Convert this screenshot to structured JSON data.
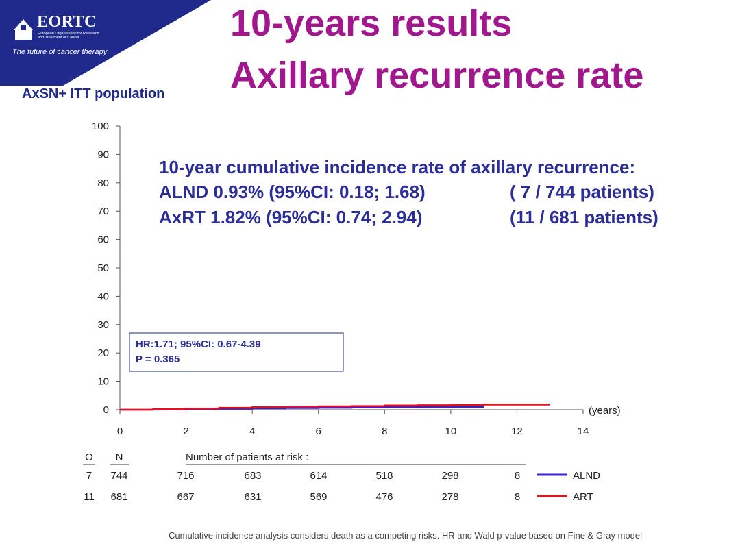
{
  "logo": {
    "name": "EORTC",
    "subtitle_line1": "European Organisation for Research",
    "subtitle_line2": "and Treatment of Cancer",
    "tagline": "The future of cancer therapy"
  },
  "title": {
    "line1": "10-years results",
    "line2": "Axillary recurrence rate"
  },
  "population": "AxSN+ ITT population",
  "summary": {
    "heading": "10-year cumulative incidence rate of axillary recurrence:",
    "alnd_rate": "ALND 0.93% (95%CI: 0.18; 1.68)",
    "alnd_patients": "(  7 / 744 patients)",
    "axrt_rate": "AxRT  1.82% (95%CI: 0.74; 2.94)",
    "axrt_patients": "(11 / 681 patients)"
  },
  "hr_box": {
    "line1": "HR:1.71; 95%CI: 0.67-4.39",
    "line2": "P = 0.365"
  },
  "colors": {
    "title": "#a3178e",
    "text_blue": "#2b2d98",
    "alnd": "#3a1fd6",
    "art": "#e8111b"
  },
  "chart_data": {
    "type": "line",
    "title": "Axillary recurrence rate",
    "xlabel": "(years)",
    "ylabel": "",
    "xlim": [
      0,
      14
    ],
    "ylim": [
      0,
      100
    ],
    "xticks": [
      0,
      2,
      4,
      6,
      8,
      10,
      12,
      14
    ],
    "yticks": [
      0,
      10,
      20,
      30,
      40,
      50,
      60,
      70,
      80,
      90,
      100
    ],
    "series": [
      {
        "name": "ALND",
        "color": "#3a1fd6",
        "x": [
          0,
          1,
          2,
          3,
          4,
          5,
          6,
          7,
          8,
          9,
          10,
          11
        ],
        "y": [
          0,
          0.1,
          0.2,
          0.4,
          0.5,
          0.6,
          0.7,
          0.8,
          0.9,
          0.9,
          1.0,
          1.0
        ]
      },
      {
        "name": "ART",
        "color": "#e8111b",
        "x": [
          0,
          1,
          2,
          3,
          4,
          5,
          6,
          7,
          8,
          9,
          10,
          11,
          12,
          13
        ],
        "y": [
          0,
          0.2,
          0.4,
          0.7,
          0.9,
          1.1,
          1.2,
          1.3,
          1.5,
          1.6,
          1.7,
          1.8,
          1.8,
          1.8
        ]
      }
    ],
    "risk_table": {
      "header_O": "O",
      "header_N": "N",
      "header_label": "Number of patients at risk :",
      "rows": [
        {
          "name": "ALND",
          "O": "7",
          "N": "744",
          "values": [
            "716",
            "683",
            "614",
            "518",
            "298",
            "8"
          ]
        },
        {
          "name": "ART",
          "O": "11",
          "N": "681",
          "values": [
            "667",
            "631",
            "569",
            "476",
            "278",
            "8"
          ]
        }
      ]
    }
  },
  "footnote": "Cumulative incidence analysis considers death as a competing risks. HR and Wald p-value based on Fine & Gray model"
}
